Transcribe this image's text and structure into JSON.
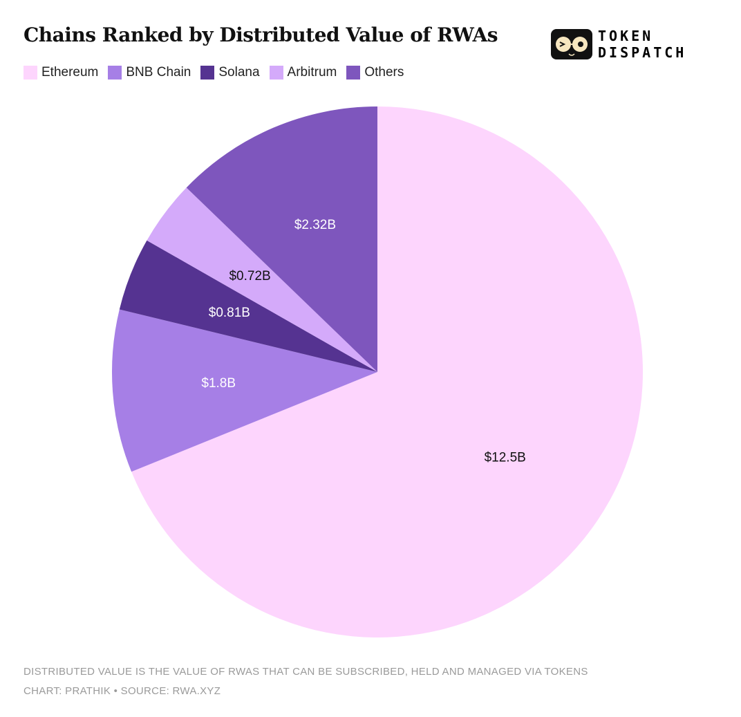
{
  "chart_data": {
    "type": "pie",
    "title": "Chains Ranked by Distributed Value of RWAs",
    "legend_position": "top-left",
    "slices": [
      {
        "name": "Ethereum",
        "value": 12.5,
        "label": "$12.5B",
        "color": "#fdd5fd",
        "label_color": "#111111"
      },
      {
        "name": "BNB Chain",
        "value": 1.8,
        "label": "$1.8B",
        "color": "#a67fe6",
        "label_color": "#ffffff"
      },
      {
        "name": "Solana",
        "value": 0.81,
        "label": "$0.81B",
        "color": "#553391",
        "label_color": "#ffffff"
      },
      {
        "name": "Arbitrum",
        "value": 0.72,
        "label": "$0.72B",
        "color": "#d4aafa",
        "label_color": "#111111"
      },
      {
        "name": "Others",
        "value": 2.32,
        "label": "$2.32B",
        "color": "#7e56bd",
        "label_color": "#ffffff"
      }
    ],
    "start": "top",
    "direction": "clockwise"
  },
  "logo": {
    "line1": "TOKEN",
    "line2": "DISPATCH"
  },
  "footer": {
    "note": "DISTRIBUTED VALUE IS THE VALUE OF RWAS THAT CAN BE SUBSCRIBED, HELD AND MANAGED VIA TOKENS",
    "credit": "CHART: PRATHIK • SOURCE: RWA.XYZ"
  }
}
